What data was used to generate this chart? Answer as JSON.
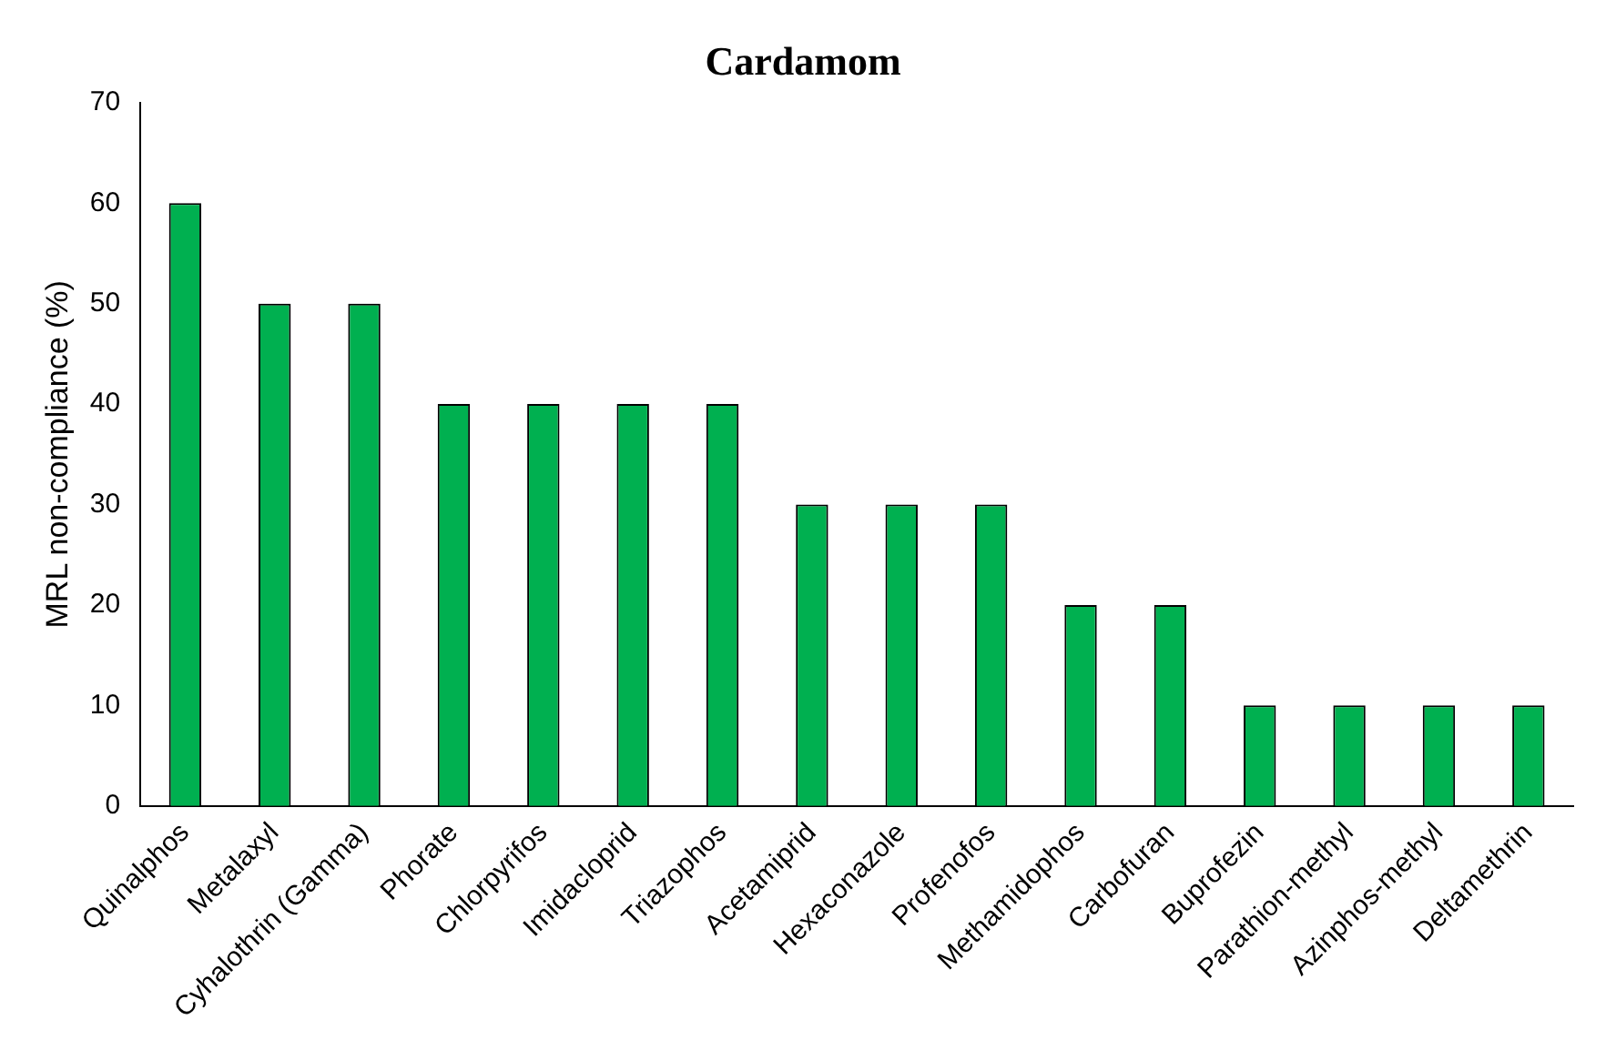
{
  "chart_data": {
    "type": "bar",
    "title": "Cardamom",
    "ylabel": "MRL non-compliance (%)",
    "categories": [
      "Quinalphos",
      "Metalaxyl",
      "Cyhalothrin (Gamma)",
      "Phorate",
      "Chlorpyrifos",
      "Imidacloprid",
      "Triazophos",
      "Acetamiprid",
      "Hexaconazole",
      "Profenofos",
      "Methamidophos",
      "Carbofuran",
      "Buprofezin",
      "Parathion-methyl",
      "Azinphos-methyl",
      "Deltamethrin"
    ],
    "values": [
      60,
      50,
      50,
      40,
      40,
      40,
      40,
      30,
      30,
      30,
      20,
      20,
      10,
      10,
      10,
      10
    ],
    "color": "#00b050",
    "ylim": [
      0,
      70
    ],
    "yticks": [
      0,
      10,
      20,
      30,
      40,
      50,
      60,
      70
    ],
    "grid": false,
    "legend": false
  }
}
